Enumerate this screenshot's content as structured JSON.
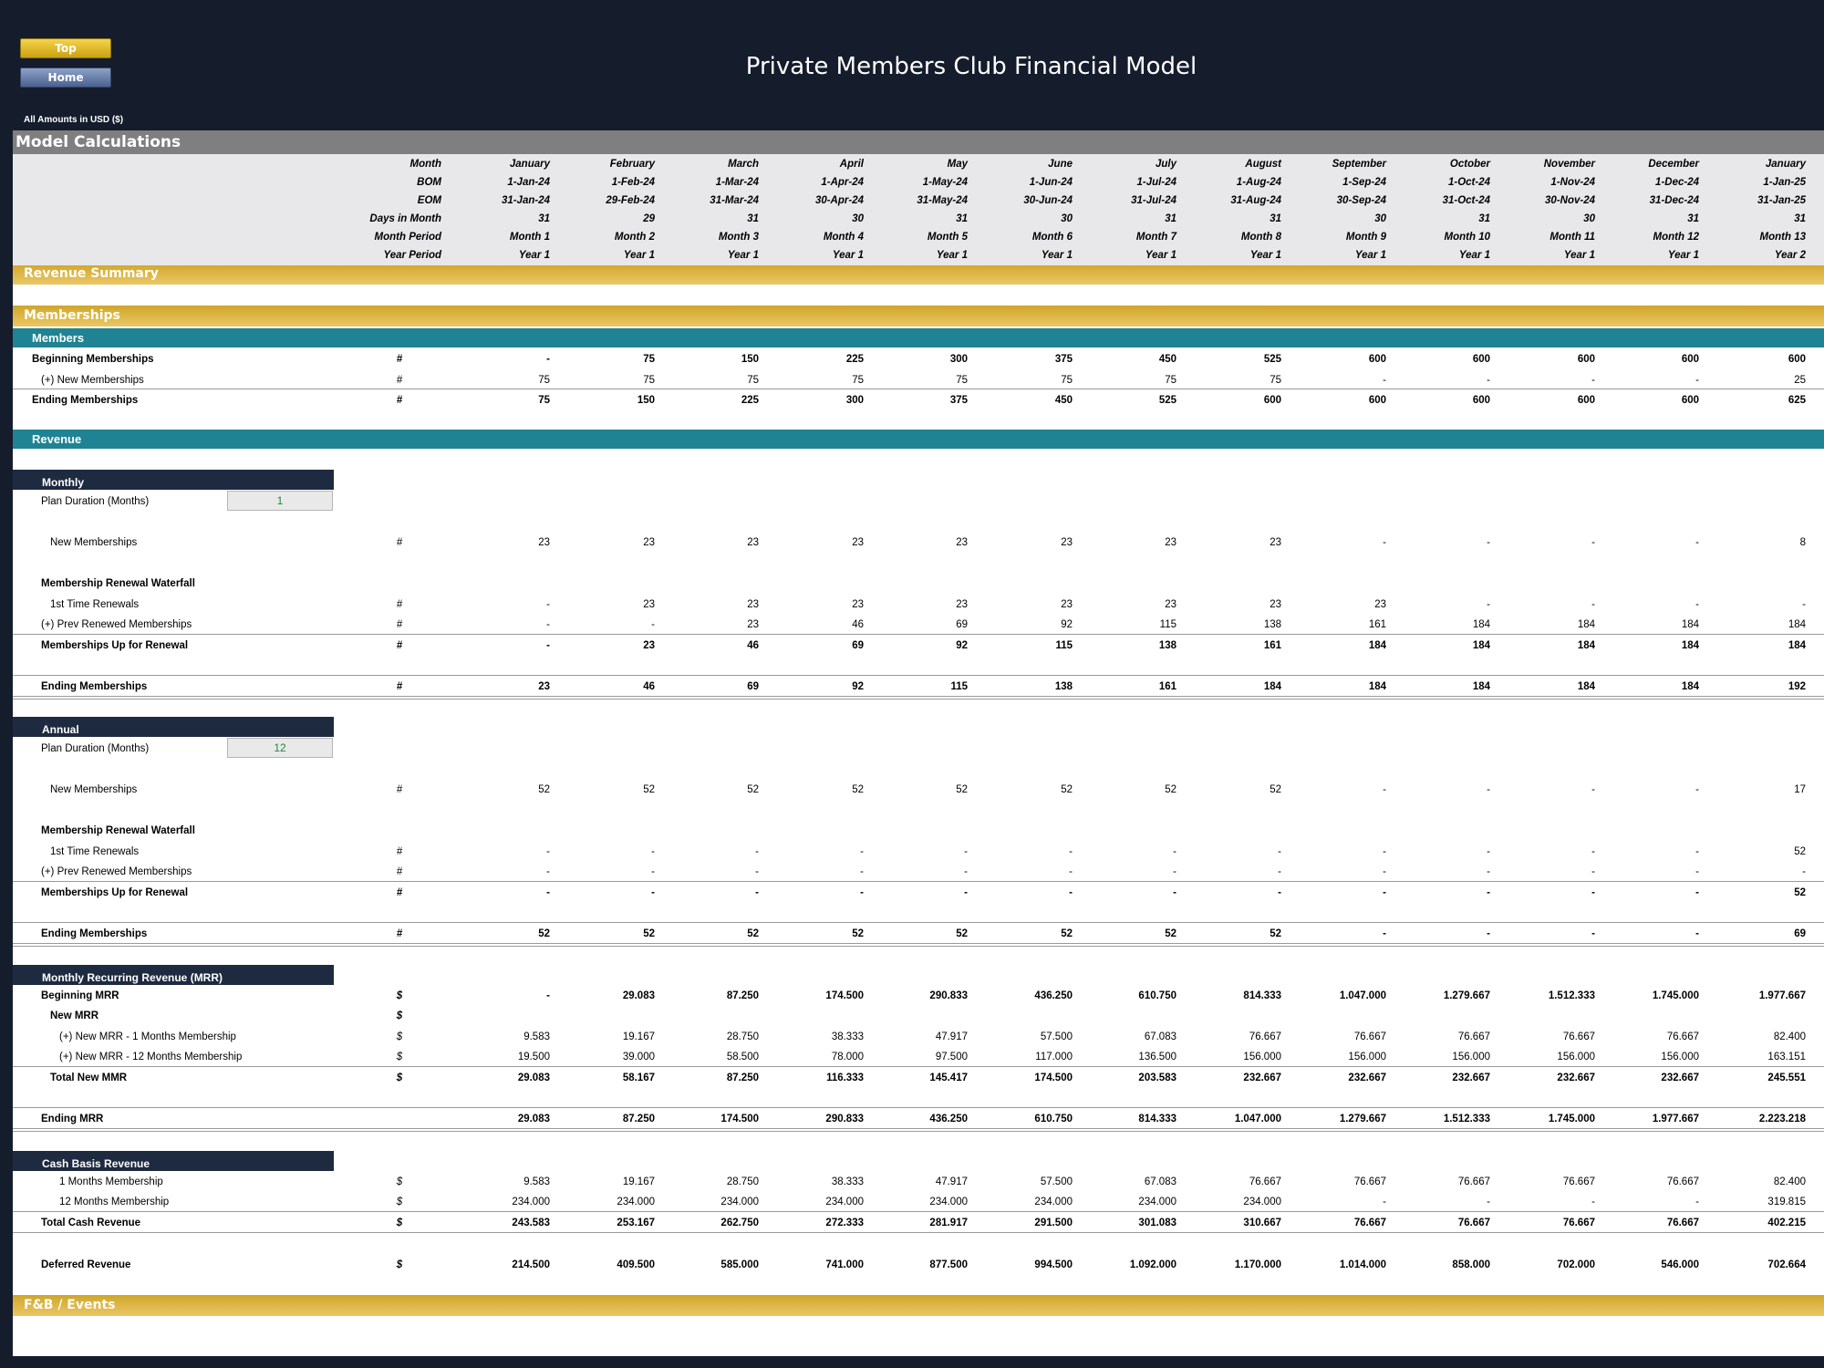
{
  "nav": {
    "top_label": "Top",
    "home_label": "Home"
  },
  "title": "Private Members Club Financial Model",
  "amounts_note": "All Amounts in  USD ($)",
  "section_title": "Model Calculations",
  "header_rows": [
    {
      "label": "Month",
      "values": [
        "January",
        "February",
        "March",
        "April",
        "May",
        "June",
        "July",
        "August",
        "September",
        "October",
        "November",
        "December",
        "January"
      ]
    },
    {
      "label": "BOM",
      "values": [
        "1-Jan-24",
        "1-Feb-24",
        "1-Mar-24",
        "1-Apr-24",
        "1-May-24",
        "1-Jun-24",
        "1-Jul-24",
        "1-Aug-24",
        "1-Sep-24",
        "1-Oct-24",
        "1-Nov-24",
        "1-Dec-24",
        "1-Jan-25"
      ]
    },
    {
      "label": "EOM",
      "values": [
        "31-Jan-24",
        "29-Feb-24",
        "31-Mar-24",
        "30-Apr-24",
        "31-May-24",
        "30-Jun-24",
        "31-Jul-24",
        "31-Aug-24",
        "30-Sep-24",
        "31-Oct-24",
        "30-Nov-24",
        "31-Dec-24",
        "31-Jan-25"
      ]
    },
    {
      "label": "Days in Month",
      "values": [
        "31",
        "29",
        "31",
        "30",
        "31",
        "30",
        "31",
        "31",
        "30",
        "31",
        "30",
        "31",
        "31"
      ]
    },
    {
      "label": "Month Period",
      "values": [
        "Month 1",
        "Month 2",
        "Month 3",
        "Month 4",
        "Month 5",
        "Month 6",
        "Month 7",
        "Month 8",
        "Month 9",
        "Month 10",
        "Month 11",
        "Month 12",
        "Month 13"
      ]
    },
    {
      "label": "Year Period",
      "values": [
        "Year 1",
        "Year 1",
        "Year 1",
        "Year 1",
        "Year 1",
        "Year 1",
        "Year 1",
        "Year 1",
        "Year 1",
        "Year 1",
        "Year 1",
        "Year 1",
        "Year 2"
      ]
    }
  ],
  "bars": {
    "revenue_summary": "Revenue Summary",
    "memberships": "Memberships",
    "members": "Members",
    "revenue": "Revenue",
    "fb_events": "F&B / Events"
  },
  "members": [
    {
      "label": "Beginning Memberships",
      "unit": "#",
      "bold": true,
      "values": [
        "-",
        "75",
        "150",
        "225",
        "300",
        "375",
        "450",
        "525",
        "600",
        "600",
        "600",
        "600",
        "600"
      ]
    },
    {
      "label": "(+) New Memberships",
      "unit": "#",
      "bold": false,
      "values": [
        "75",
        "75",
        "75",
        "75",
        "75",
        "75",
        "75",
        "75",
        "-",
        "-",
        "-",
        "-",
        "25"
      ]
    },
    {
      "label": "Ending Memberships",
      "unit": "#",
      "bold": true,
      "values": [
        "75",
        "150",
        "225",
        "300",
        "375",
        "450",
        "525",
        "600",
        "600",
        "600",
        "600",
        "600",
        "625"
      ]
    }
  ],
  "monthly": {
    "tag": "Monthly",
    "plan_label": "Plan Duration (Months)",
    "plan_value": "1",
    "new_memberships": {
      "label": "New Memberships",
      "unit": "#",
      "values": [
        "23",
        "23",
        "23",
        "23",
        "23",
        "23",
        "23",
        "23",
        "-",
        "-",
        "-",
        "-",
        "8"
      ]
    },
    "waterfall_title": "Membership Renewal Waterfall",
    "first_time": {
      "label": "1st Time Renewals",
      "unit": "#",
      "values": [
        "-",
        "23",
        "23",
        "23",
        "23",
        "23",
        "23",
        "23",
        "23",
        "-",
        "-",
        "-",
        "-"
      ]
    },
    "prev_renewed": {
      "label": "(+) Prev Renewed Memberships",
      "unit": "#",
      "values": [
        "-",
        "-",
        "23",
        "46",
        "69",
        "92",
        "115",
        "138",
        "161",
        "184",
        "184",
        "184",
        "184"
      ]
    },
    "up_for_renewal": {
      "label": "Memberships Up for Renewal",
      "unit": "#",
      "values": [
        "-",
        "23",
        "46",
        "69",
        "92",
        "115",
        "138",
        "161",
        "184",
        "184",
        "184",
        "184",
        "184"
      ]
    },
    "ending": {
      "label": "Ending Memberships",
      "unit": "#",
      "values": [
        "23",
        "46",
        "69",
        "92",
        "115",
        "138",
        "161",
        "184",
        "184",
        "184",
        "184",
        "184",
        "192"
      ]
    }
  },
  "annual": {
    "tag": "Annual",
    "plan_label": "Plan Duration (Months)",
    "plan_value": "12",
    "new_memberships": {
      "label": "New Memberships",
      "unit": "#",
      "values": [
        "52",
        "52",
        "52",
        "52",
        "52",
        "52",
        "52",
        "52",
        "-",
        "-",
        "-",
        "-",
        "17"
      ]
    },
    "waterfall_title": "Membership Renewal Waterfall",
    "first_time": {
      "label": "1st Time Renewals",
      "unit": "#",
      "values": [
        "-",
        "-",
        "-",
        "-",
        "-",
        "-",
        "-",
        "-",
        "-",
        "-",
        "-",
        "-",
        "52"
      ]
    },
    "prev_renewed": {
      "label": "(+) Prev Renewed Memberships",
      "unit": "#",
      "values": [
        "-",
        "-",
        "-",
        "-",
        "-",
        "-",
        "-",
        "-",
        "-",
        "-",
        "-",
        "-",
        "-"
      ]
    },
    "up_for_renewal": {
      "label": "Memberships Up for Renewal",
      "unit": "#",
      "values": [
        "-",
        "-",
        "-",
        "-",
        "-",
        "-",
        "-",
        "-",
        "-",
        "-",
        "-",
        "-",
        "52"
      ]
    },
    "ending": {
      "label": "Ending Memberships",
      "unit": "#",
      "values": [
        "52",
        "52",
        "52",
        "52",
        "52",
        "52",
        "52",
        "52",
        "-",
        "-",
        "-",
        "-",
        "69"
      ]
    }
  },
  "mrr": {
    "tag": "Monthly Recurring Revenue (MRR)",
    "beginning": {
      "label": "Beginning MRR",
      "unit": "$",
      "values": [
        "-",
        "29.083",
        "87.250",
        "174.500",
        "290.833",
        "436.250",
        "610.750",
        "814.333",
        "1.047.000",
        "1.279.667",
        "1.512.333",
        "1.745.000",
        "1.977.667"
      ]
    },
    "new_mrr_label": "New MRR",
    "new_mrr_unit": "$",
    "new_1": {
      "label": "(+) New MRR - 1 Months Membership",
      "unit": "$",
      "values": [
        "9.583",
        "19.167",
        "28.750",
        "38.333",
        "47.917",
        "57.500",
        "67.083",
        "76.667",
        "76.667",
        "76.667",
        "76.667",
        "76.667",
        "82.400"
      ]
    },
    "new_12": {
      "label": "(+) New MRR - 12 Months Membership",
      "unit": "$",
      "values": [
        "19.500",
        "39.000",
        "58.500",
        "78.000",
        "97.500",
        "117.000",
        "136.500",
        "156.000",
        "156.000",
        "156.000",
        "156.000",
        "156.000",
        "163.151"
      ]
    },
    "total_new": {
      "label": "Total New MMR",
      "unit": "$",
      "values": [
        "29.083",
        "58.167",
        "87.250",
        "116.333",
        "145.417",
        "174.500",
        "203.583",
        "232.667",
        "232.667",
        "232.667",
        "232.667",
        "232.667",
        "245.551"
      ]
    },
    "ending": {
      "label": "Ending MRR",
      "unit": "",
      "values": [
        "29.083",
        "87.250",
        "174.500",
        "290.833",
        "436.250",
        "610.750",
        "814.333",
        "1.047.000",
        "1.279.667",
        "1.512.333",
        "1.745.000",
        "1.977.667",
        "2.223.218"
      ]
    }
  },
  "cash": {
    "tag": "Cash Basis Revenue",
    "m1": {
      "label": "1 Months Membership",
      "unit": "$",
      "values": [
        "9.583",
        "19.167",
        "28.750",
        "38.333",
        "47.917",
        "57.500",
        "67.083",
        "76.667",
        "76.667",
        "76.667",
        "76.667",
        "76.667",
        "82.400"
      ]
    },
    "m12": {
      "label": "12 Months Membership",
      "unit": "$",
      "values": [
        "234.000",
        "234.000",
        "234.000",
        "234.000",
        "234.000",
        "234.000",
        "234.000",
        "234.000",
        "-",
        "-",
        "-",
        "-",
        "319.815"
      ]
    },
    "total": {
      "label": "Total Cash Revenue",
      "unit": "$",
      "values": [
        "243.583",
        "253.167",
        "262.750",
        "272.333",
        "281.917",
        "291.500",
        "301.083",
        "310.667",
        "76.667",
        "76.667",
        "76.667",
        "76.667",
        "402.215"
      ]
    }
  },
  "deferred": {
    "label": "Deferred Revenue",
    "unit": "$",
    "values": [
      "214.500",
      "409.500",
      "585.000",
      "741.000",
      "877.500",
      "994.500",
      "1.092.000",
      "1.170.000",
      "1.014.000",
      "858.000",
      "702.000",
      "546.000",
      "702.664"
    ]
  }
}
